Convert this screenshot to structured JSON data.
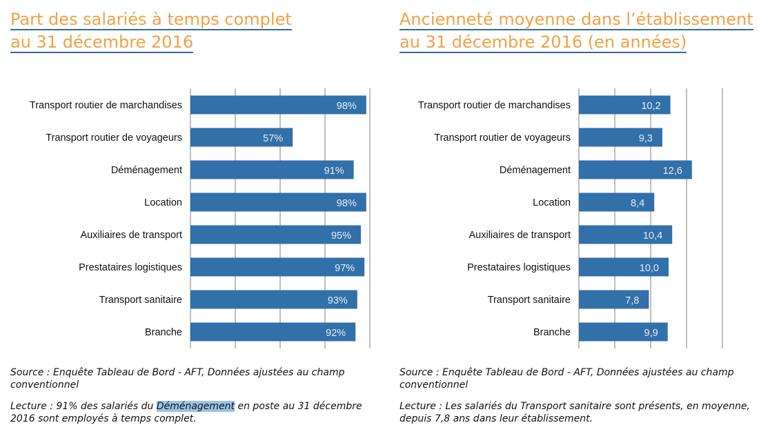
{
  "colors": {
    "bar": "#3170a9",
    "title": "#f3a046",
    "underline": "#2e6aa8",
    "grid": "#7f7f7f"
  },
  "chart_data": [
    {
      "type": "bar",
      "orientation": "horizontal",
      "title_line1": "Part des salariés à temps complet",
      "title_line2": "au 31 décembre 2016",
      "categories": [
        "Transport routier de marchandises",
        "Transport routier de voyageurs",
        "Déménagement",
        "Location",
        "Auxiliaires de transport",
        "Prestataires logistiques",
        "Transport sanitaire",
        "Branche"
      ],
      "values": [
        98,
        57,
        91,
        98,
        95,
        97,
        93,
        92
      ],
      "labels": [
        "98%",
        "57%",
        "91%",
        "98%",
        "95%",
        "97%",
        "93%",
        "92%"
      ],
      "xlim": [
        0,
        100
      ],
      "grid_step": 25,
      "grid": true,
      "unit": "%"
    },
    {
      "type": "bar",
      "orientation": "horizontal",
      "title_line1": "Ancienneté moyenne dans l’établissement",
      "title_line2": "au 31 décembre 2016 (en années)",
      "categories": [
        "Transport routier de marchandises",
        "Transport routier de voyageurs",
        "Déménagement",
        "Location",
        "Auxiliaires de transport",
        "Prestataires logistiques",
        "Transport sanitaire",
        "Branche"
      ],
      "values": [
        10.2,
        9.3,
        12.6,
        8.4,
        10.4,
        10.0,
        7.8,
        9.9
      ],
      "labels": [
        "10,2",
        "9,3",
        "12,6",
        "8,4",
        "10,4",
        "10,0",
        "7,8",
        "9,9"
      ],
      "xlim": [
        0,
        16
      ],
      "grid_step": 4,
      "grid": true,
      "unit": "années"
    }
  ],
  "notes": {
    "left_source": "Source : Enquête Tableau de Bord - AFT, Données ajustées au champ conventionnel",
    "left_lecture_before": "Lecture : 91% des salariés du ",
    "left_lecture_highlight": "Déménagement",
    "left_lecture_after": " en poste au 31 décembre 2016 sont employés à temps complet.",
    "right_source": "Source : Enquête Tableau de Bord - AFT, Données ajustées au champ conventionnel",
    "right_lecture": "Lecture : Les salariés du Transport sanitaire sont présents, en moyenne, depuis 7,8 ans dans leur établissement."
  }
}
